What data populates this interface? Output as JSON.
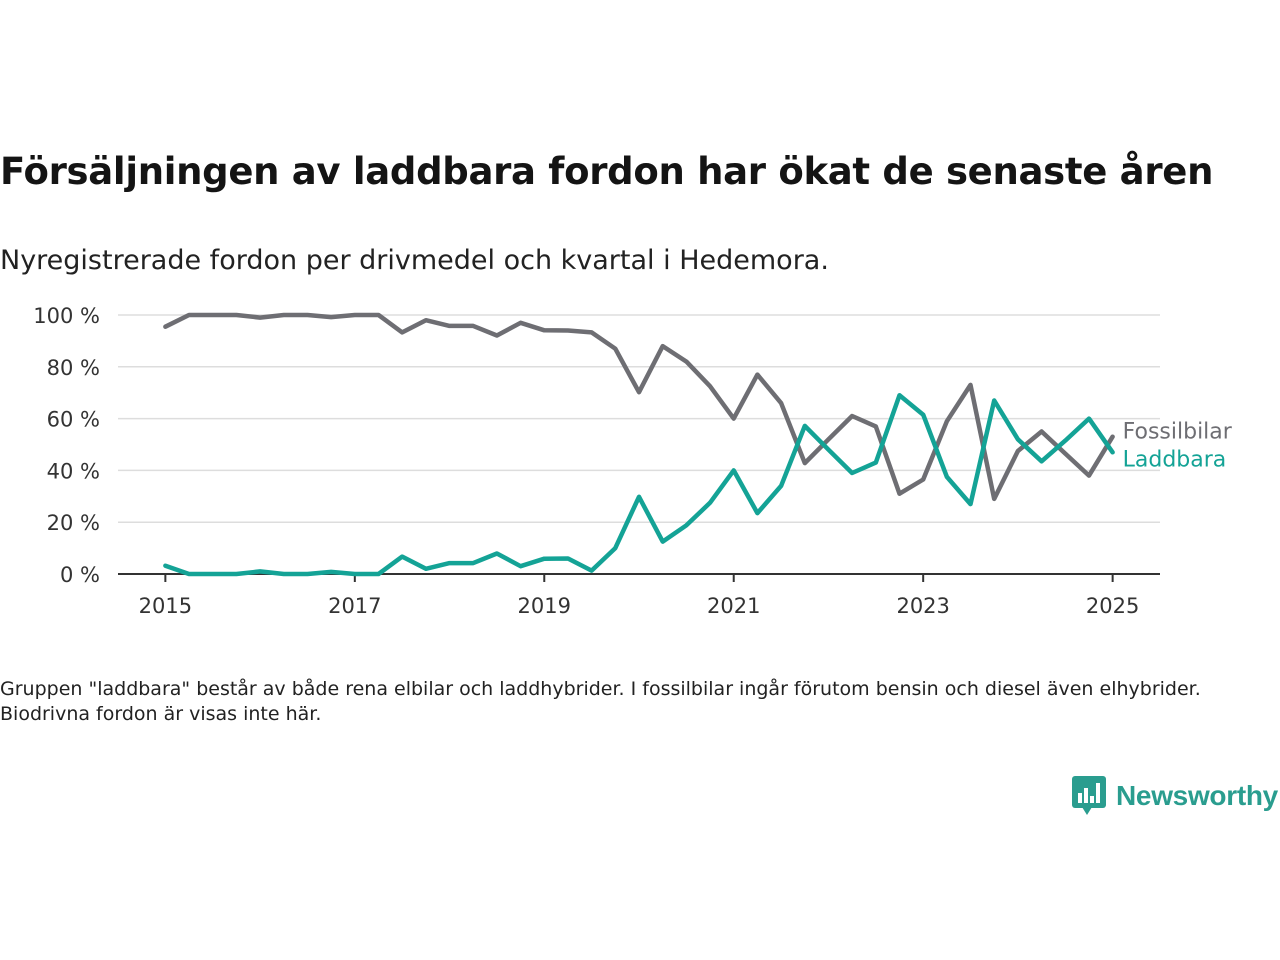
{
  "title": "Försäljningen av laddbara fordon har ökat de senaste åren",
  "subtitle": "Nyregistrerade fordon per drivmedel och kvartal i Hedemora.",
  "footnote": "Gruppen \"laddbara\" består av både rena elbilar och laddhybrider. I fossilbilar ingår förutom bensin och diesel även elhybrider. Biodrivna fordon är visas inte här.",
  "brand": {
    "name": "Newsworthy",
    "icon": "newsworthy-logo-icon"
  },
  "colors": {
    "fossil": "#6e6e73",
    "laddbara": "#14a396",
    "grid": "#dddddd",
    "axis": "#333333",
    "brand": "#2a9d8f"
  },
  "chart_data": {
    "type": "line",
    "title": "Försäljningen av laddbara fordon har ökat de senaste åren",
    "xlabel": "",
    "ylabel": "",
    "xlim": [
      2014.5,
      2025.5
    ],
    "ylim": [
      0,
      100
    ],
    "x_ticks": [
      2015,
      2017,
      2019,
      2021,
      2023,
      2025
    ],
    "x_tick_labels": [
      "2015",
      "2017",
      "2019",
      "2021",
      "2023",
      "2025"
    ],
    "y_ticks": [
      0,
      20,
      40,
      60,
      80,
      100
    ],
    "y_tick_labels": [
      "0 %",
      "20 %",
      "40 %",
      "60 %",
      "80 %",
      "100 %"
    ],
    "grid": true,
    "legend": "end-of-line labels",
    "x": [
      2015.0,
      2015.25,
      2015.5,
      2015.75,
      2016.0,
      2016.25,
      2016.5,
      2016.75,
      2017.0,
      2017.25,
      2017.5,
      2017.75,
      2018.0,
      2018.25,
      2018.5,
      2018.75,
      2019.0,
      2019.25,
      2019.5,
      2019.75,
      2020.0,
      2020.25,
      2020.5,
      2020.75,
      2021.0,
      2021.25,
      2021.5,
      2021.75,
      2022.0,
      2022.25,
      2022.5,
      2022.75,
      2023.0,
      2023.25,
      2023.5,
      2023.75,
      2024.0,
      2024.25,
      2024.5,
      2024.75,
      2025.0
    ],
    "series": [
      {
        "name": "Fossilbilar",
        "color": "#6e6e73",
        "values": [
          95.5,
          100,
          100,
          100,
          99,
          100,
          100,
          99.2,
          100,
          100,
          93.3,
          98,
          95.8,
          95.8,
          92.1,
          97,
          94.1,
          94,
          93.3,
          87,
          70.2,
          88,
          82,
          72.5,
          60,
          77,
          66,
          42.8,
          52,
          61,
          57,
          31,
          36.5,
          59,
          73,
          29,
          47.5,
          55,
          46.5,
          38,
          53
        ]
      },
      {
        "name": "Laddbara",
        "color": "#14a396",
        "values": [
          3.2,
          0,
          0,
          0,
          1,
          0,
          0,
          0.8,
          0,
          0,
          6.7,
          2,
          4.2,
          4.2,
          7.9,
          3,
          5.9,
          6,
          1.3,
          10,
          29.8,
          12.5,
          18.8,
          27.5,
          40,
          23.5,
          34,
          57.2,
          48,
          39,
          43,
          69,
          61.5,
          37.5,
          27,
          67,
          52,
          43.5,
          51.5,
          60,
          47
        ]
      }
    ]
  }
}
